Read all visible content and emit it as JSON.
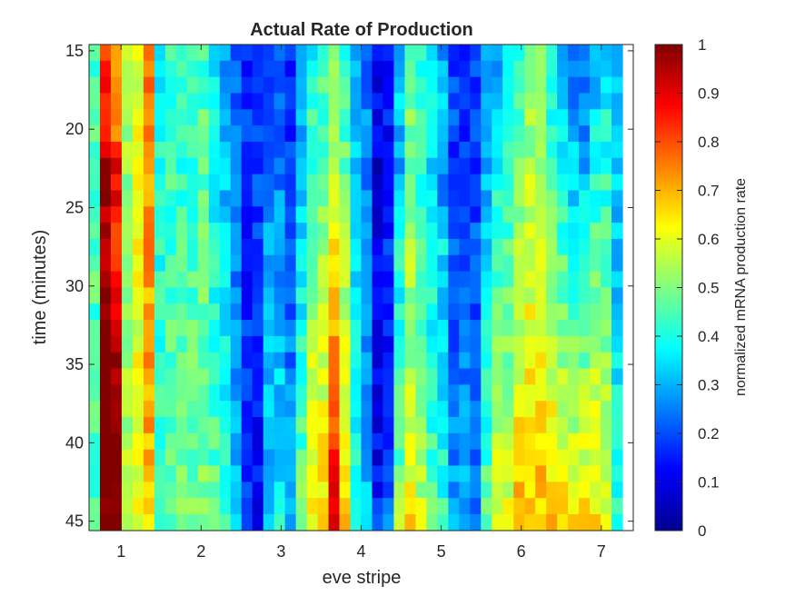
{
  "chart_data": {
    "type": "heatmap",
    "title": "Actual Rate of Production",
    "xlabel": "eve stripe",
    "ylabel": "time (minutes)",
    "colorbar_label": "normalized mRNA production rate",
    "colormap": "jet",
    "x_range": [
      0.6,
      7.4
    ],
    "y_range": [
      14.6,
      45.6
    ],
    "y_reversed": true,
    "x_ticks": [
      "1",
      "2",
      "3",
      "4",
      "5",
      "6",
      "7"
    ],
    "y_ticks": [
      "15",
      "20",
      "25",
      "30",
      "35",
      "40",
      "45"
    ],
    "colorbar_ticks": [
      "0",
      "0.1",
      "0.2",
      "0.3",
      "0.4",
      "0.5",
      "0.6",
      "0.7",
      "0.8",
      "0.9",
      "1"
    ],
    "color_range": [
      0,
      1
    ],
    "cell_width_stripe": 0.136,
    "cell_height_minutes": 1.033,
    "column_base_rates": [
      0.45,
      0.82,
      0.7,
      0.52,
      0.6,
      0.75,
      0.38,
      0.42,
      0.4,
      0.42,
      0.45,
      0.35,
      0.28,
      0.22,
      0.18,
      0.2,
      0.22,
      0.2,
      0.15,
      0.25,
      0.38,
      0.42,
      0.48,
      0.4,
      0.3,
      0.25,
      0.1,
      0.12,
      0.28,
      0.45,
      0.4,
      0.38,
      0.28,
      0.18,
      0.15,
      0.18,
      0.25,
      0.3,
      0.35,
      0.42,
      0.5,
      0.48,
      0.38,
      0.3,
      0.22,
      0.2,
      0.3,
      0.35,
      0.28
    ],
    "row_time_trends": [
      0,
      0.02,
      0.02,
      0,
      0.02,
      0.05,
      0.1,
      0.14,
      0.16,
      0.16,
      0.12,
      0.1,
      0.06,
      0.08,
      0.08,
      0.14,
      0.16,
      0.18,
      0.2,
      0.22,
      0.18,
      0.18,
      0.2,
      0.2,
      0.2,
      0.2,
      0.22,
      0.2,
      0.15,
      0.15
    ],
    "late_rise_by_column": [
      0,
      0.06,
      0.1,
      0.02,
      0,
      -0.05,
      0.05,
      0.05,
      0.08,
      0.06,
      0.05,
      0.1,
      0.12,
      0.08,
      -0.02,
      -0.05,
      0.1,
      0.15,
      0.12,
      0.2,
      0.22,
      0.2,
      0.35,
      0.25,
      0.1,
      0.05,
      0.12,
      0.15,
      0.28,
      0.25,
      0.22,
      0.15,
      0.2,
      0.18,
      0.12,
      0.05,
      0.18,
      0.25,
      0.2,
      0.22,
      0.15,
      0.18,
      0.25,
      0.3,
      0.35,
      0.38,
      0.3,
      0.2,
      0.1
    ]
  }
}
